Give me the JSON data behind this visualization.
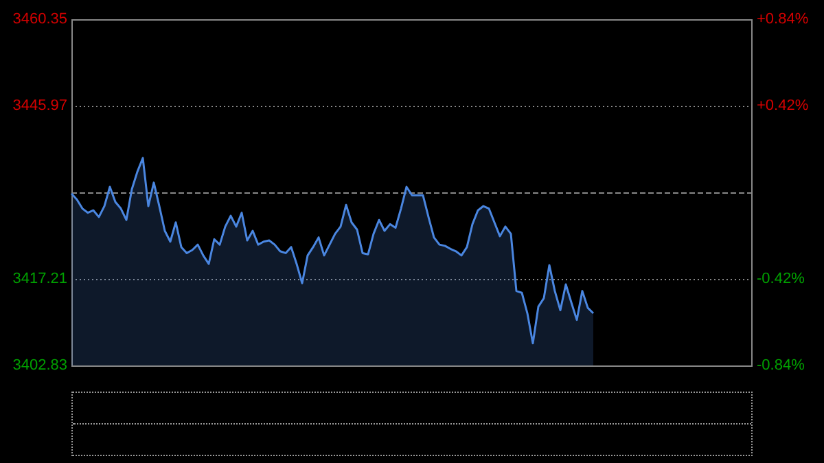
{
  "chart_data": {
    "type": "area",
    "categories": [
      null,
      null,
      null,
      null,
      null,
      null,
      null,
      null,
      null,
      null,
      null,
      null,
      null,
      null,
      null,
      null,
      null,
      null,
      null,
      null,
      null,
      null,
      null,
      null,
      null,
      null,
      null,
      null,
      null,
      null,
      null,
      null,
      null,
      null,
      null,
      null,
      null,
      null,
      null,
      null,
      null,
      null,
      null,
      null,
      null,
      null,
      null,
      null,
      null,
      null,
      null,
      null,
      null,
      null,
      null,
      null,
      null,
      null,
      null,
      null,
      null,
      null,
      null,
      null,
      null,
      null,
      null,
      null,
      null,
      null,
      null,
      null,
      null,
      null,
      null,
      null,
      null,
      null,
      null,
      null,
      null,
      null,
      null,
      null,
      null,
      null,
      null,
      null,
      null,
      null,
      null,
      null,
      null,
      null,
      null,
      null,
      null,
      null,
      null,
      null,
      null,
      null,
      null,
      null,
      null,
      null,
      null,
      null,
      null,
      null,
      null,
      null,
      null,
      null,
      null,
      null,
      null,
      null,
      null,
      null,
      null,
      null,
      null,
      null,
      null
    ],
    "series": [
      {
        "color": "#4a86e0",
        "values": [
          3431.4,
          3430.4,
          3428.9,
          3428.2,
          3428.6,
          3427.5,
          3429.3,
          3432.5,
          3430.0,
          3428.9,
          3427.0,
          3432.1,
          3435.0,
          3437.3,
          3429.3,
          3433.2,
          3429.3,
          3425.2,
          3423.4,
          3426.6,
          3422.5,
          3421.5,
          3422.0,
          3422.9,
          3421.1,
          3419.7,
          3423.8,
          3422.9,
          3425.9,
          3427.7,
          3425.9,
          3428.2,
          3423.6,
          3425.2,
          3422.9,
          3423.4,
          3423.6,
          3422.9,
          3421.8,
          3421.5,
          3422.5,
          3419.7,
          3416.5,
          3421.1,
          3422.5,
          3424.1,
          3421.1,
          3422.9,
          3424.7,
          3425.9,
          3429.5,
          3426.6,
          3425.4,
          3421.5,
          3421.3,
          3424.7,
          3427.0,
          3425.2,
          3426.3,
          3425.7,
          3428.9,
          3432.5,
          3431.1,
          3431.1,
          3431.1,
          3427.5,
          3424.1,
          3422.9,
          3422.7,
          3422.2,
          3421.8,
          3421.1,
          3422.5,
          3426.3,
          3428.6,
          3429.3,
          3428.9,
          3426.6,
          3424.3,
          3425.9,
          3424.7,
          3415.2,
          3414.9,
          3411.5,
          3406.5,
          3412.6,
          3414.0,
          3419.5,
          3415.2,
          3412.0,
          3416.3,
          3413.3,
          3410.4,
          3415.2,
          3412.4,
          3411.5,
          null,
          null,
          null,
          null,
          null,
          null,
          null,
          null,
          null,
          null,
          null,
          null,
          null,
          null,
          null,
          null,
          null,
          null,
          null,
          null,
          null,
          null,
          null,
          null,
          null,
          null,
          null,
          null,
          null
        ]
      }
    ],
    "ylim": [
      3402.83,
      3460.35
    ],
    "yticks": [
      3402.83,
      3417.21,
      3445.97,
      3460.35
    ],
    "y2lim": [
      -0.84,
      0.84
    ],
    "y2ticks": [
      {
        "value": -0.84,
        "label": "-0.84%"
      },
      {
        "value": -0.42,
        "label": "-0.42%"
      },
      {
        "value": 0.42,
        "label": "+0.42%"
      },
      {
        "value": 0.84,
        "label": "+0.84%"
      }
    ],
    "ref_lines": [
      {
        "axis": "y",
        "value": 3431.59,
        "line_style": "dashed",
        "color": "#888888"
      }
    ],
    "grid": "y",
    "legend": false,
    "marker": "none",
    "line_style": "solid",
    "tick_labels": "y"
  }
}
